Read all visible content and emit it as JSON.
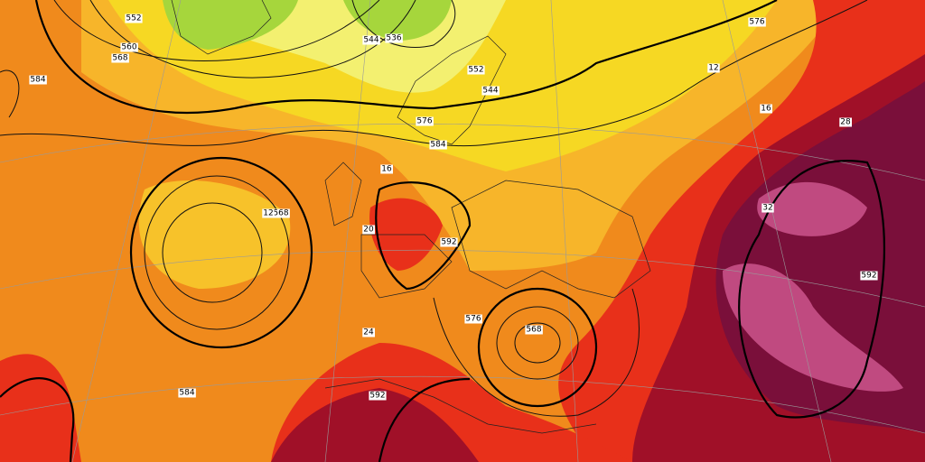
{
  "contour_labels": [
    552,
    560,
    568,
    544,
    536,
    576,
    584,
    552,
    544,
    576,
    584,
    568,
    592,
    576,
    568,
    584,
    592,
    592,
    16,
    12,
    16,
    12,
    20,
    32,
    28,
    24
  ]
}
